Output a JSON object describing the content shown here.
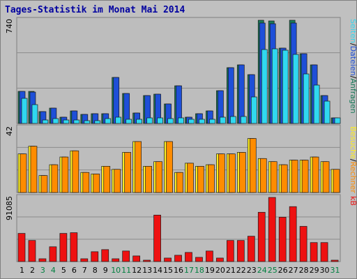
{
  "title": "Tages-Statistik im Monat Mai 2014",
  "colors": {
    "background": "#c0c0c0",
    "plot_bg": "#bdbdbd",
    "hits": "#1a7a5a",
    "files": "#1e4fd8",
    "pages": "#30d8f0",
    "visits": "#ff8c00",
    "sites": "#ffee22",
    "kbytes": "#ee1111",
    "weekend": "#008040",
    "weekday": "#000000"
  },
  "chart_data": [
    {
      "type": "bar",
      "name": "hits-files-pages",
      "ymax_label": "740",
      "categories": [
        "1",
        "2",
        "3",
        "4",
        "5",
        "6",
        "7",
        "8",
        "9",
        "10",
        "11",
        "12",
        "13",
        "14",
        "15",
        "16",
        "17",
        "18",
        "19",
        "20",
        "21",
        "22",
        "23",
        "24",
        "25",
        "26",
        "27",
        "28",
        "29",
        "30",
        "31"
      ],
      "weekend_days": [
        "3",
        "4",
        "10",
        "11",
        "17",
        "18",
        "24",
        "25",
        "31"
      ],
      "ymax": 740,
      "series": [
        {
          "name": "Anfragen",
          "values": [
            230,
            230,
            85,
            110,
            45,
            90,
            65,
            70,
            70,
            330,
            215,
            75,
            200,
            210,
            140,
            270,
            45,
            70,
            90,
            235,
            400,
            420,
            350,
            740,
            735,
            540,
            740,
            500,
            420,
            200,
            40
          ]
        },
        {
          "name": "Dateien",
          "values": [
            230,
            225,
            85,
            110,
            45,
            90,
            65,
            70,
            70,
            330,
            215,
            75,
            200,
            210,
            140,
            270,
            45,
            70,
            90,
            235,
            400,
            420,
            350,
            720,
            715,
            540,
            720,
            500,
            420,
            200,
            40
          ]
        },
        {
          "name": "Seiten",
          "values": [
            180,
            135,
            25,
            35,
            25,
            25,
            20,
            20,
            35,
            45,
            30,
            30,
            40,
            40,
            35,
            40,
            30,
            30,
            30,
            45,
            50,
            50,
            190,
            530,
            535,
            525,
            495,
            355,
            275,
            160,
            40
          ]
        }
      ],
      "right_label": [
        "Anfragen",
        "Dateien",
        "Seiten"
      ]
    },
    {
      "type": "bar",
      "name": "visits-sites",
      "ymax_label": "42",
      "ymax": 42,
      "series": [
        {
          "name": "Besuche",
          "values": [
            25,
            30,
            11,
            18,
            23,
            27,
            13,
            12,
            17,
            15,
            26,
            33,
            17,
            20,
            33,
            13,
            19,
            17,
            18,
            25,
            25,
            26,
            35,
            22,
            20,
            18,
            21,
            21,
            23,
            20,
            15
          ]
        },
        {
          "name": "Rechner",
          "values": [
            25,
            30,
            11,
            18,
            23,
            27,
            13,
            12,
            17,
            15,
            26,
            33,
            17,
            20,
            33,
            13,
            19,
            17,
            18,
            25,
            25,
            26,
            35,
            22,
            20,
            18,
            21,
            21,
            23,
            20,
            15
          ]
        }
      ],
      "right_label": [
        "Rechner",
        "Besuche"
      ]
    },
    {
      "type": "bar",
      "name": "kbytes",
      "ymax_label": "91085",
      "ymax": 91085,
      "series": [
        {
          "name": "kB",
          "values": [
            40000,
            30000,
            4000,
            21000,
            40000,
            41000,
            4000,
            14000,
            17000,
            4000,
            15000,
            8000,
            2000,
            66000,
            5000,
            9000,
            13000,
            6000,
            15000,
            5000,
            30000,
            30000,
            36000,
            70000,
            91085,
            63000,
            78000,
            50000,
            27000,
            27000,
            2000
          ]
        }
      ],
      "right_label": [
        "kB"
      ]
    }
  ]
}
